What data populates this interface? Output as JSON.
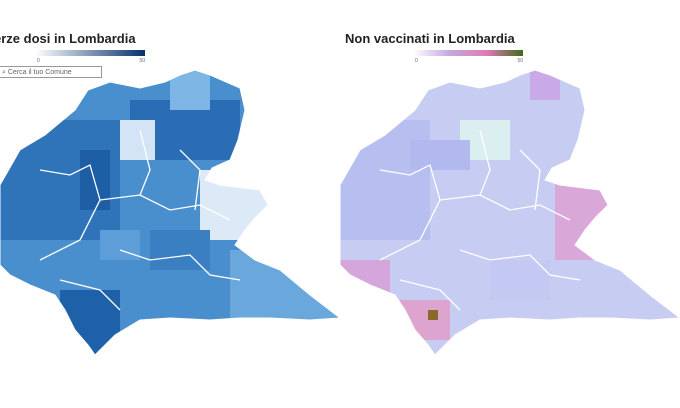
{
  "left_map": {
    "title": "erze dosi in Lombardia",
    "legend": {
      "min": "0",
      "max": "50",
      "colors": [
        "#ffffff",
        "#08306b"
      ]
    },
    "search": {
      "placeholder": "Cerca il tuo Comune"
    },
    "fill_colors": [
      "#4a8fcd",
      "#2f74b8",
      "#6aaadf",
      "#1e5fa6",
      "#7db6e4"
    ]
  },
  "right_map": {
    "title": "Non vaccinati in Lombardia",
    "legend": {
      "min": "0",
      "max": "50",
      "colors": [
        "#ffffff",
        "#c3a8e0",
        "#e07bb5",
        "#3e6b1a"
      ]
    },
    "fill_colors": [
      "#c7cdf2",
      "#b5bdf0",
      "#d3d8f6",
      "#c9a9e8",
      "#e4a2cf"
    ]
  }
}
